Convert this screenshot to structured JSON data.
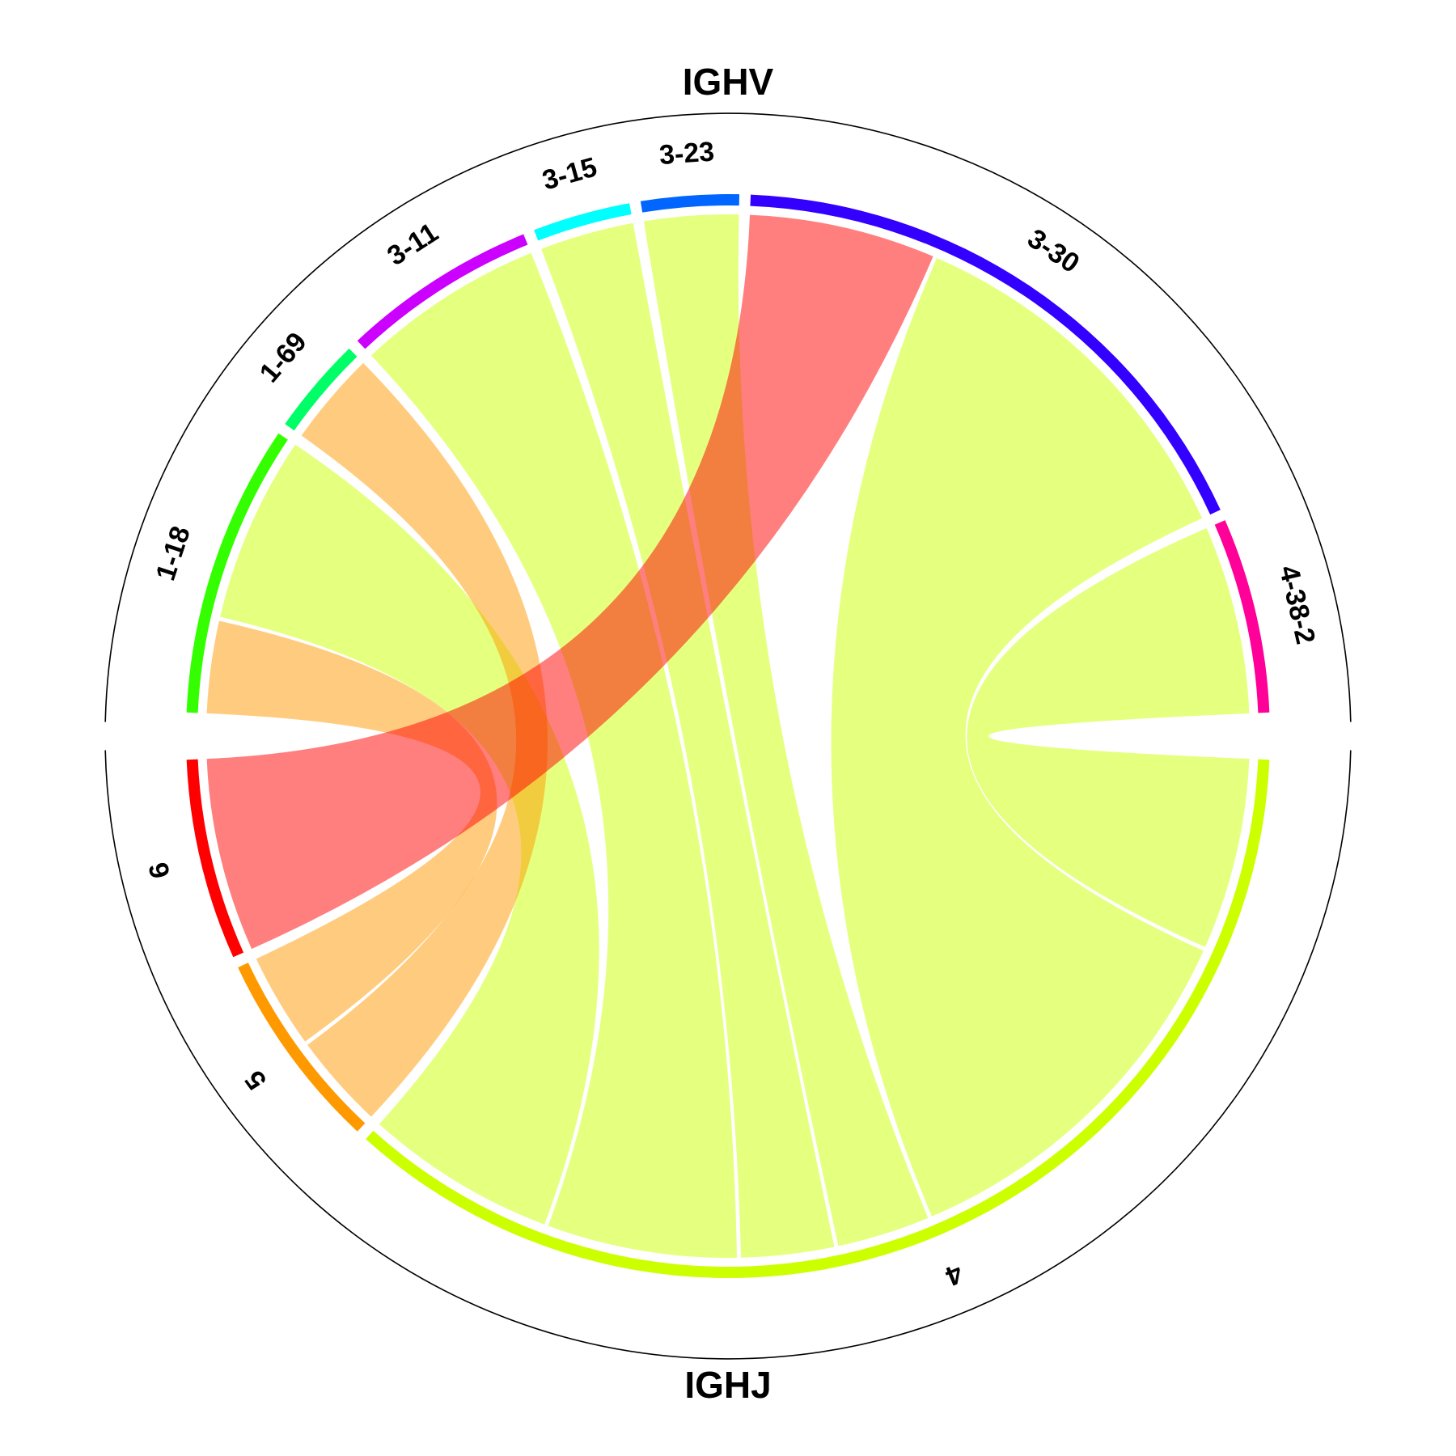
{
  "chart_data": {
    "type": "chord",
    "title": "",
    "groups": [
      {
        "name": "IGHV",
        "segments": [
          {
            "label": "1-18",
            "color": "#33ff00"
          },
          {
            "label": "1-69",
            "color": "#00ff66"
          },
          {
            "label": "3-11",
            "color": "#cc00ff"
          },
          {
            "label": "3-15",
            "color": "#00ffff"
          },
          {
            "label": "3-23",
            "color": "#0066ff"
          },
          {
            "label": "3-30",
            "color": "#3300ff"
          },
          {
            "label": "4-38-2",
            "color": "#ff0099"
          }
        ]
      },
      {
        "name": "IGHJ",
        "segments": [
          {
            "label": "4",
            "color": "#ccff00"
          },
          {
            "label": "5",
            "color": "#ff9900"
          },
          {
            "label": "6",
            "color": "#ff0000"
          }
        ]
      }
    ],
    "links": [
      {
        "from": "1-18",
        "to": "4",
        "value": 2,
        "color": "#ccff00"
      },
      {
        "from": "1-18",
        "to": "5",
        "value": 1,
        "color": "#ff9900"
      },
      {
        "from": "1-69",
        "to": "5",
        "value": 1,
        "color": "#ff9900"
      },
      {
        "from": "3-11",
        "to": "4",
        "value": 2,
        "color": "#ccff00"
      },
      {
        "from": "3-15",
        "to": "4",
        "value": 1,
        "color": "#ccff00"
      },
      {
        "from": "3-23",
        "to": "4",
        "value": 1,
        "color": "#ccff00"
      },
      {
        "from": "3-30",
        "to": "4",
        "value": 4,
        "color": "#ccff00"
      },
      {
        "from": "3-30",
        "to": "6",
        "value": 2,
        "color": "#ff0000"
      },
      {
        "from": "4-38-2",
        "to": "4",
        "value": 2,
        "color": "#ccff00"
      }
    ]
  }
}
